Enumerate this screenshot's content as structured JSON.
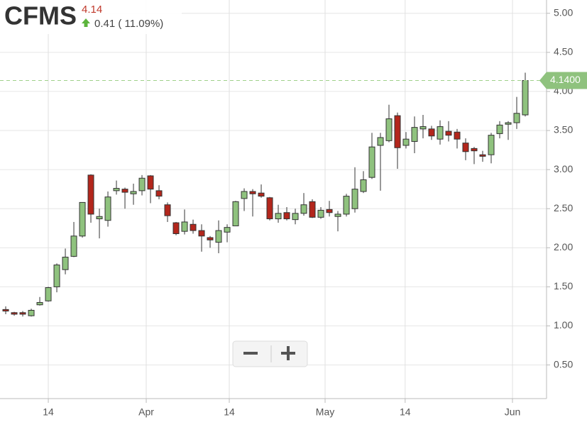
{
  "chart_data": {
    "type": "candlestick",
    "ticker": "CFMS",
    "price": "4.14",
    "change": "0.41 ( 11.09%)",
    "last_price": {
      "value": 4.14,
      "label": "4.1400"
    },
    "up_color": "#8fc27e",
    "down_color": "#b3261c",
    "grid": true,
    "xlim": [
      -0.67,
      63.5
    ],
    "ylim": [
      0.07,
      5.17
    ],
    "xticks": [
      {
        "value": 5,
        "label": "14"
      },
      {
        "value": 16.5,
        "label": "Apr"
      },
      {
        "value": 26.25,
        "label": "14"
      },
      {
        "value": 37.5,
        "label": "May"
      },
      {
        "value": 46.9,
        "label": "14"
      },
      {
        "value": 59.5,
        "label": "Jun"
      }
    ],
    "yticks": [
      {
        "value": 0.5,
        "label": "0.50"
      },
      {
        "value": 1,
        "label": "1.00"
      },
      {
        "value": 1.5,
        "label": "1.50"
      },
      {
        "value": 2,
        "label": "2.00"
      },
      {
        "value": 2.5,
        "label": "2.50"
      },
      {
        "value": 3,
        "label": "3.00"
      },
      {
        "value": 3.5,
        "label": "3.50"
      },
      {
        "value": 4,
        "label": "4.00"
      },
      {
        "value": 4.5,
        "label": "4.50"
      },
      {
        "value": 5,
        "label": "5.00"
      }
    ],
    "open": [
      1.21,
      1.17,
      1.17,
      1.13,
      1.27,
      1.32,
      1.5,
      1.72,
      1.89,
      2.15,
      2.93,
      2.37,
      2.35,
      2.73,
      2.75,
      2.69,
      2.73,
      2.92,
      2.73,
      2.55,
      2.32,
      2.21,
      2.3,
      2.22,
      2.13,
      2.07,
      2.2,
      2.28,
      2.63,
      2.72,
      2.7,
      2.64,
      2.37,
      2.45,
      2.36,
      2.44,
      2.59,
      2.39,
      2.49,
      2.4,
      2.43,
      2.5,
      2.72,
      2.9,
      3.31,
      3.37,
      3.69,
      3.31,
      3.36,
      3.52,
      3.52,
      3.39,
      3.49,
      3.48,
      3.34,
      3.27,
      3.19,
      3.19,
      3.46,
      3.58,
      3.6,
      3.7
    ],
    "high": [
      1.25,
      1.18,
      1.19,
      1.22,
      1.37,
      1.5,
      1.8,
      1.99,
      2.33,
      2.58,
      2.94,
      2.5,
      2.72,
      2.86,
      2.77,
      2.82,
      2.93,
      2.93,
      2.8,
      2.58,
      2.33,
      2.49,
      2.36,
      2.3,
      2.15,
      2.35,
      2.3,
      2.6,
      2.76,
      2.75,
      2.81,
      2.65,
      2.55,
      2.52,
      2.5,
      2.7,
      2.62,
      2.52,
      2.6,
      2.47,
      2.69,
      3.03,
      2.98,
      3.47,
      3.47,
      3.83,
      3.73,
      3.48,
      3.68,
      3.7,
      3.56,
      3.63,
      3.62,
      3.52,
      3.4,
      3.29,
      3.24,
      3.47,
      3.62,
      3.62,
      3.93,
      4.24
    ],
    "low": [
      1.15,
      1.13,
      1.12,
      1.12,
      1.26,
      1.31,
      1.43,
      1.66,
      1.88,
      2.13,
      2.32,
      2.12,
      2.27,
      2.68,
      2.5,
      2.55,
      2.67,
      2.57,
      2.62,
      2.33,
      2.16,
      2.17,
      2.18,
      1.95,
      2.0,
      1.93,
      2.07,
      2.28,
      2.47,
      2.4,
      2.64,
      2.35,
      2.32,
      2.35,
      2.3,
      2.41,
      2.38,
      2.37,
      2.4,
      2.21,
      2.4,
      2.45,
      2.7,
      2.88,
      2.73,
      3.35,
      3.01,
      3.27,
      3.21,
      3.4,
      3.38,
      3.32,
      3.36,
      3.27,
      3.12,
      3.07,
      3.1,
      3.08,
      3.4,
      3.38,
      3.52,
      3.68
    ],
    "close": [
      1.19,
      1.15,
      1.15,
      1.2,
      1.3,
      1.49,
      1.78,
      1.88,
      2.15,
      2.58,
      2.43,
      2.4,
      2.65,
      2.76,
      2.71,
      2.72,
      2.89,
      2.75,
      2.66,
      2.41,
      2.18,
      2.33,
      2.22,
      2.15,
      2.1,
      2.22,
      2.26,
      2.59,
      2.72,
      2.69,
      2.66,
      2.37,
      2.44,
      2.37,
      2.44,
      2.55,
      2.39,
      2.48,
      2.45,
      2.43,
      2.66,
      2.75,
      2.87,
      3.29,
      3.41,
      3.65,
      3.28,
      3.39,
      3.54,
      3.55,
      3.43,
      3.55,
      3.44,
      3.39,
      3.23,
      3.24,
      3.17,
      3.44,
      3.57,
      3.6,
      3.72,
      4.14
    ]
  }
}
